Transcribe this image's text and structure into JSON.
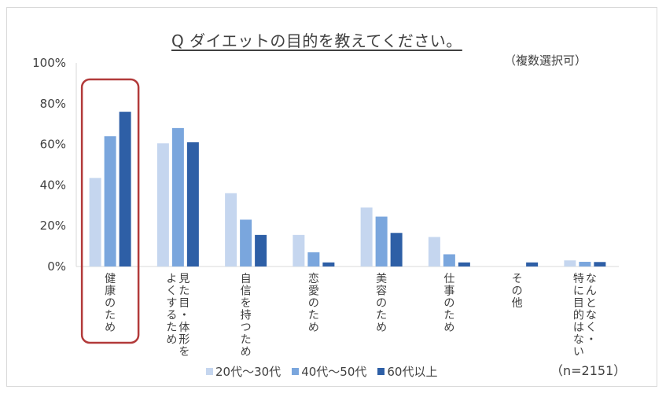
{
  "chart_data": {
    "type": "bar",
    "title": "Q ダイエットの目的を教えてください。",
    "subtitle": "（複数選択可）",
    "note": "（n=2151）",
    "ylim": [
      0,
      100
    ],
    "yticks": [
      "0%",
      "20%",
      "40%",
      "60%",
      "80%",
      "100%"
    ],
    "categories": [
      [
        "健康のため"
      ],
      [
        "見た目・体形を",
        "よくするため"
      ],
      [
        "自信を持つため"
      ],
      [
        "恋愛のため"
      ],
      [
        "美容のため"
      ],
      [
        "仕事のため"
      ],
      [
        "その他"
      ],
      [
        "なんとなく・",
        "特に目的はない"
      ]
    ],
    "series": [
      {
        "name": "20代～30代",
        "color": "#c5d6ef",
        "values": [
          43.5,
          60.5,
          36,
          15.5,
          29,
          14.5,
          0,
          3
        ]
      },
      {
        "name": "40代～50代",
        "color": "#7aa6dd",
        "values": [
          64,
          68,
          23,
          7,
          24.5,
          6,
          0,
          2.3
        ]
      },
      {
        "name": "60代以上",
        "color": "#2e5fa6",
        "values": [
          76,
          61,
          15.5,
          2,
          16.5,
          2,
          2,
          2.2
        ]
      }
    ],
    "highlight_category_index": 0,
    "highlight_color": "#b23a3a",
    "grid": false,
    "legend_position": "bottom"
  }
}
